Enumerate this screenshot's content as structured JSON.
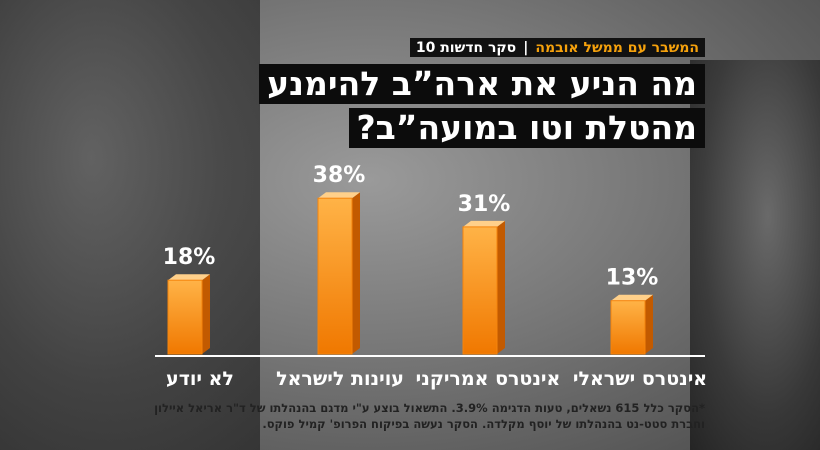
{
  "header": {
    "tag": "המשבר עם ממשל אובמה",
    "source": "סקר חדשות 10"
  },
  "chart_data": {
    "type": "bar",
    "title": [
      "מה הניע את ארה”ב להימנע",
      "מהטלת וטו במועה”ב?"
    ],
    "categories": [
      "לא יודע",
      "עוינות לישראל",
      "אינטרס אמריקני",
      "אינטרס ישראלי"
    ],
    "values": [
      18,
      38,
      31,
      13
    ],
    "value_labels": [
      "18%",
      "38%",
      "31%",
      "13%"
    ],
    "color": "#f5840c"
  },
  "footnote": [
    "*הסקר כלל 615 נשאלים, טעות הדגימה 3.9%. התשאול בוצע ע\"י מדגם בהנהלתו של ד\"ר אריאל איילון",
    "וחברת סטט-נט בהנהלתו של יוסף מקלדה. הסקר נעשה בפיקוח הפרופ' קמיל פוקס."
  ]
}
